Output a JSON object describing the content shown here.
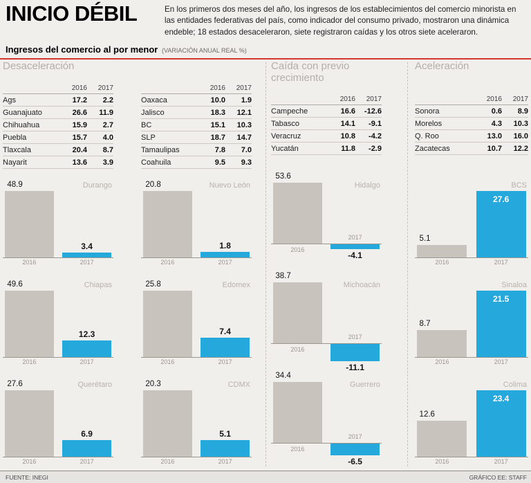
{
  "header": {
    "title": "INICIO DÉBIL",
    "description": "En los primeros dos meses del año, los ingresos de los establecimientos del comercio minorista en las entidades federativas del país, como indicador del consumo privado, mostraron una dinámica endeble; 18 estados desaceleraron, siete registraron caídas y los otros siete aceleraron.",
    "subtitle": "Ingresos del comercio al por menor",
    "subtitle_note": "(VARIACIÓN ANUAL REAL %)"
  },
  "sections": {
    "desaceleracion": "Desaceleración",
    "caida": "Caída con previo crecimiento",
    "aceleracion": "Aceleración"
  },
  "years": [
    "2016",
    "2017"
  ],
  "footer": {
    "source": "FUENTE: INEGI",
    "credit": "GRÁFICO EE: STAFF"
  },
  "colors": {
    "bar_2016_gray": "#c8c3bd",
    "bar_2017_blue": "#25a8dc",
    "accent_red": "#d6372c",
    "section_header_gray": "#b3afa9"
  },
  "chart_data": [
    {
      "type": "table",
      "group": "Desaceleración",
      "columns": [
        "2016",
        "2017"
      ],
      "rows": [
        [
          "Ags",
          "17.2",
          "2.2"
        ],
        [
          "Guanajuato",
          "26.6",
          "11.9"
        ],
        [
          "Chihuahua",
          "15.9",
          "2.7"
        ],
        [
          "Puebla",
          "15.7",
          "4.0"
        ],
        [
          "Tlaxcala",
          "20.4",
          "8.7"
        ],
        [
          "Nayarit",
          "13.6",
          "3.9"
        ]
      ]
    },
    {
      "type": "table",
      "group": "Desaceleración",
      "columns": [
        "2016",
        "2017"
      ],
      "rows": [
        [
          "Oaxaca",
          "10.0",
          "1.9"
        ],
        [
          "Jalisco",
          "18.3",
          "12.1"
        ],
        [
          "BC",
          "15.1",
          "10.3"
        ],
        [
          "SLP",
          "18.7",
          "14.7"
        ],
        [
          "Tamaulipas",
          "7.8",
          "7.0"
        ],
        [
          "Coahuila",
          "9.5",
          "9.3"
        ]
      ]
    },
    {
      "type": "table",
      "group": "Caída con previo crecimiento",
      "columns": [
        "2016",
        "2017"
      ],
      "rows": [
        [
          "Campeche",
          "16.6",
          "-12.6"
        ],
        [
          "Tabasco",
          "14.1",
          "-9.1"
        ],
        [
          "Veracruz",
          "10.8",
          "-4.2"
        ],
        [
          "Yucatán",
          "11.8",
          "-2.9"
        ]
      ]
    },
    {
      "type": "table",
      "group": "Aceleración",
      "columns": [
        "2016",
        "2017"
      ],
      "rows": [
        [
          "Sonora",
          "0.6",
          "8.9"
        ],
        [
          "Morelos",
          "4.3",
          "10.3"
        ],
        [
          "Q. Roo",
          "13.0",
          "16.0"
        ],
        [
          "Zacatecas",
          "10.7",
          "12.2"
        ]
      ]
    },
    {
      "type": "bar",
      "group": "Desaceleración",
      "title": "Durango",
      "categories": [
        "2016",
        "2017"
      ],
      "values": [
        48.9,
        3.4
      ],
      "labels": [
        "48.9",
        "3.4"
      ],
      "label_style": "above"
    },
    {
      "type": "bar",
      "group": "Desaceleración",
      "title": "Nuevo León",
      "categories": [
        "2016",
        "2017"
      ],
      "values": [
        20.8,
        1.8
      ],
      "labels": [
        "20.8",
        "1.8"
      ],
      "label_style": "above"
    },
    {
      "type": "bar",
      "group": "Caída con previo crecimiento",
      "title": "Hidalgo",
      "categories": [
        "2016",
        "2017"
      ],
      "values": [
        53.6,
        -4.1
      ],
      "labels": [
        "53.6",
        "-4.1"
      ],
      "label_style": "below"
    },
    {
      "type": "bar",
      "group": "Aceleración",
      "title": "BCS",
      "categories": [
        "2016",
        "2017"
      ],
      "values": [
        5.1,
        27.6
      ],
      "labels": [
        "5.1",
        "27.6"
      ],
      "label_style": "inside"
    },
    {
      "type": "bar",
      "group": "Desaceleración",
      "title": "Chiapas",
      "categories": [
        "2016",
        "2017"
      ],
      "values": [
        49.6,
        12.3
      ],
      "labels": [
        "49.6",
        "12.3"
      ],
      "label_style": "above"
    },
    {
      "type": "bar",
      "group": "Desaceleración",
      "title": "Edomex",
      "categories": [
        "2016",
        "2017"
      ],
      "values": [
        25.8,
        7.4
      ],
      "labels": [
        "25.8",
        "7.4"
      ],
      "label_style": "above"
    },
    {
      "type": "bar",
      "group": "Caída con previo crecimiento",
      "title": "Michoacán",
      "categories": [
        "2016",
        "2017"
      ],
      "values": [
        38.7,
        -11.1
      ],
      "labels": [
        "38.7",
        "-11.1"
      ],
      "label_style": "below"
    },
    {
      "type": "bar",
      "group": "Aceleración",
      "title": "Sinaloa",
      "categories": [
        "2016",
        "2017"
      ],
      "values": [
        8.7,
        21.5
      ],
      "labels": [
        "8.7",
        "21.5"
      ],
      "label_style": "inside"
    },
    {
      "type": "bar",
      "group": "Desaceleración",
      "title": "Querétaro",
      "categories": [
        "2016",
        "2017"
      ],
      "values": [
        27.6,
        6.9
      ],
      "labels": [
        "27.6",
        "6.9"
      ],
      "label_style": "above"
    },
    {
      "type": "bar",
      "group": "Desaceleración",
      "title": "CDMX",
      "categories": [
        "2016",
        "2017"
      ],
      "values": [
        20.3,
        5.1
      ],
      "labels": [
        "20.3",
        "5.1"
      ],
      "label_style": "above"
    },
    {
      "type": "bar",
      "group": "Caída con previo crecimiento",
      "title": "Guerrero",
      "categories": [
        "2016",
        "2017"
      ],
      "values": [
        34.4,
        -6.5
      ],
      "labels": [
        "34.4",
        "-6.5"
      ],
      "label_style": "below"
    },
    {
      "type": "bar",
      "group": "Aceleración",
      "title": "Colima",
      "categories": [
        "2016",
        "2017"
      ],
      "values": [
        12.6,
        23.4
      ],
      "labels": [
        "12.6",
        "23.4"
      ],
      "label_style": "inside"
    }
  ]
}
